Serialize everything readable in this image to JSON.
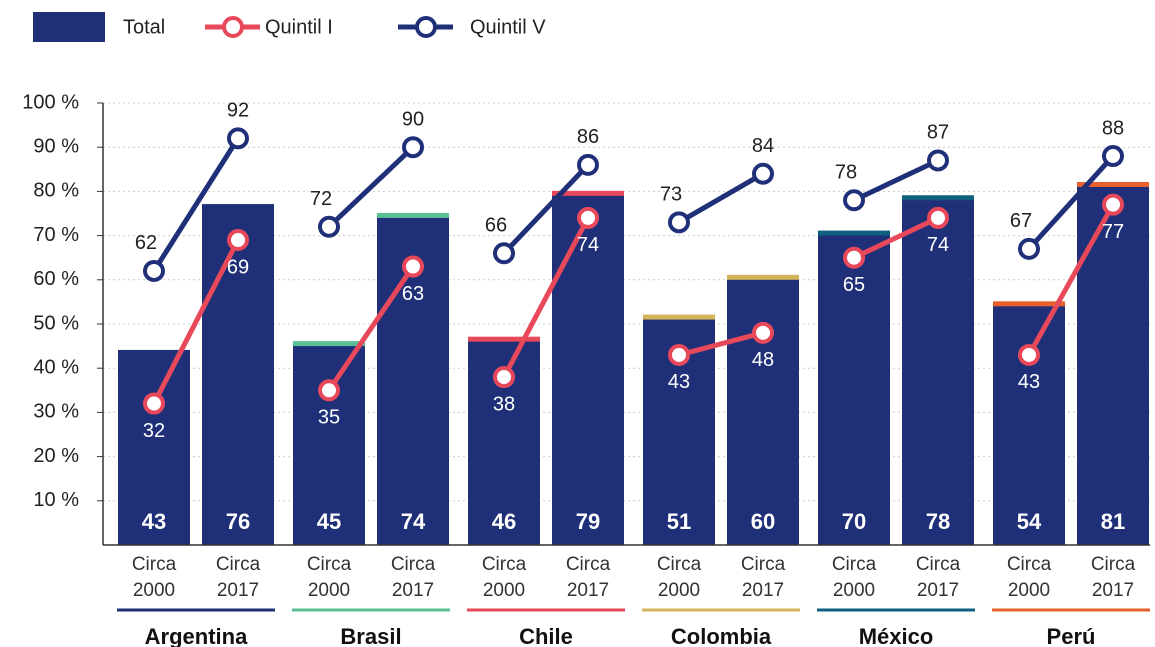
{
  "chart_data": {
    "type": "bar-line",
    "groups": [
      "Argentina",
      "Brasil",
      "Chile",
      "Colombia",
      "México",
      "Perú"
    ],
    "group_colors": [
      "#1f3078",
      "#5bbf96",
      "#e8495a",
      "#d4b45a",
      "#0f5f7f",
      "#e8602c"
    ],
    "categories": [
      "Circa 2000",
      "Circa 2017",
      "Circa 2000",
      "Circa 2017",
      "Circa 2000",
      "Circa 2017",
      "Circa 2000",
      "Circa 2017",
      "Circa 2000",
      "Circa 2017",
      "Circa 2000",
      "Circa 2017"
    ],
    "series": [
      {
        "name": "Total",
        "color": "#1f3078",
        "values": [
          43,
          76,
          45,
          74,
          46,
          79,
          51,
          60,
          70,
          78,
          54,
          81
        ]
      },
      {
        "name": "Quintil I",
        "color": "#e8495a",
        "values": [
          32,
          69,
          35,
          63,
          38,
          74,
          43,
          48,
          65,
          74,
          43,
          77
        ]
      },
      {
        "name": "Quintil V",
        "color": "#1f3078",
        "values": [
          62,
          92,
          72,
          90,
          66,
          86,
          73,
          84,
          78,
          87,
          67,
          88
        ]
      }
    ],
    "ylim": [
      0,
      100
    ],
    "yticks": [
      {
        "value": 10,
        "label": "10 %"
      },
      {
        "value": 20,
        "label": "20 %"
      },
      {
        "value": 30,
        "label": "30 %"
      },
      {
        "value": 40,
        "label": "40 %"
      },
      {
        "value": 50,
        "label": "50 %"
      },
      {
        "value": 60,
        "label": "60 %"
      },
      {
        "value": 70,
        "label": "70 %"
      },
      {
        "value": 80,
        "label": "80 %"
      },
      {
        "value": 90,
        "label": "90 %"
      },
      {
        "value": 100,
        "label": "100 %"
      }
    ],
    "grid": true
  }
}
